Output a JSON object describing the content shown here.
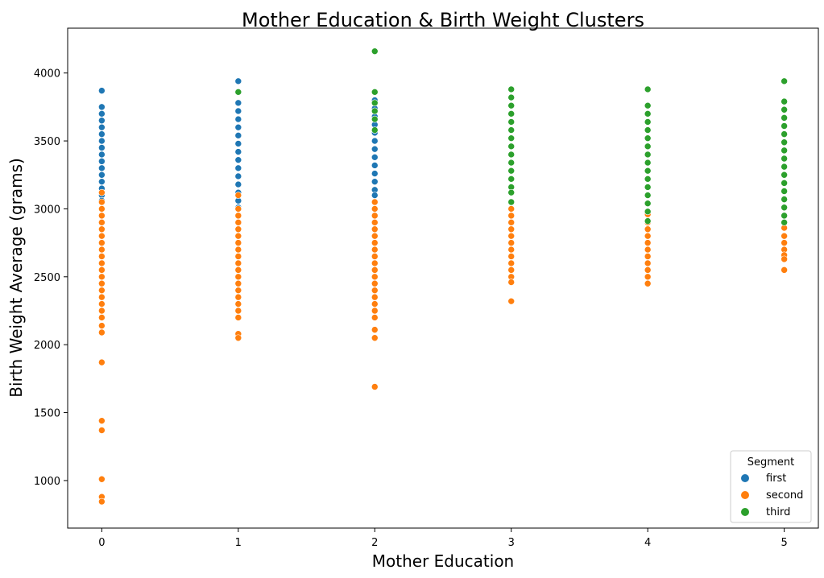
{
  "chart_data": {
    "type": "scatter",
    "title": "Mother Education & Birth Weight Clusters",
    "xlabel": "Mother Education",
    "ylabel": "Birth Weight Average (grams)",
    "xlim": [
      -0.25,
      5.25
    ],
    "ylim": [
      650,
      4330
    ],
    "xticks": [
      0,
      1,
      2,
      3,
      4,
      5
    ],
    "yticks": [
      1000,
      1500,
      2000,
      2500,
      3000,
      3500,
      4000
    ],
    "grid": false,
    "legend": {
      "title": "Segment",
      "placement": "bottom-right"
    },
    "series": [
      {
        "name": "first",
        "color": "#1f77b4",
        "points": [
          [
            0,
            3870
          ],
          [
            0,
            3750
          ],
          [
            0,
            3700
          ],
          [
            0,
            3650
          ],
          [
            0,
            3600
          ],
          [
            0,
            3550
          ],
          [
            0,
            3500
          ],
          [
            0,
            3450
          ],
          [
            0,
            3400
          ],
          [
            0,
            3350
          ],
          [
            0,
            3300
          ],
          [
            0,
            3250
          ],
          [
            0,
            3200
          ],
          [
            0,
            3150
          ],
          [
            0,
            3100
          ],
          [
            0,
            3060
          ],
          [
            1,
            3940
          ],
          [
            1,
            3780
          ],
          [
            1,
            3720
          ],
          [
            1,
            3660
          ],
          [
            1,
            3600
          ],
          [
            1,
            3540
          ],
          [
            1,
            3480
          ],
          [
            1,
            3420
          ],
          [
            1,
            3360
          ],
          [
            1,
            3300
          ],
          [
            1,
            3240
          ],
          [
            1,
            3180
          ],
          [
            1,
            3120
          ],
          [
            1,
            3060
          ],
          [
            1,
            3010
          ],
          [
            2,
            3800
          ],
          [
            2,
            3740
          ],
          [
            2,
            3680
          ],
          [
            2,
            3620
          ],
          [
            2,
            3560
          ],
          [
            2,
            3500
          ],
          [
            2,
            3440
          ],
          [
            2,
            3380
          ],
          [
            2,
            3320
          ],
          [
            2,
            3260
          ],
          [
            2,
            3200
          ],
          [
            2,
            3140
          ],
          [
            2,
            3100
          ]
        ]
      },
      {
        "name": "second",
        "color": "#ff7f0e",
        "points": [
          [
            0,
            3120
          ],
          [
            0,
            3050
          ],
          [
            0,
            3000
          ],
          [
            0,
            2950
          ],
          [
            0,
            2900
          ],
          [
            0,
            2850
          ],
          [
            0,
            2800
          ],
          [
            0,
            2750
          ],
          [
            0,
            2700
          ],
          [
            0,
            2650
          ],
          [
            0,
            2600
          ],
          [
            0,
            2550
          ],
          [
            0,
            2500
          ],
          [
            0,
            2450
          ],
          [
            0,
            2400
          ],
          [
            0,
            2350
          ],
          [
            0,
            2300
          ],
          [
            0,
            2250
          ],
          [
            0,
            2200
          ],
          [
            0,
            2140
          ],
          [
            0,
            2090
          ],
          [
            0,
            1870
          ],
          [
            0,
            1440
          ],
          [
            0,
            1370
          ],
          [
            0,
            1010
          ],
          [
            0,
            880
          ],
          [
            0,
            845
          ],
          [
            1,
            3100
          ],
          [
            1,
            3000
          ],
          [
            1,
            2950
          ],
          [
            1,
            2900
          ],
          [
            1,
            2850
          ],
          [
            1,
            2800
          ],
          [
            1,
            2750
          ],
          [
            1,
            2700
          ],
          [
            1,
            2650
          ],
          [
            1,
            2600
          ],
          [
            1,
            2550
          ],
          [
            1,
            2500
          ],
          [
            1,
            2450
          ],
          [
            1,
            2400
          ],
          [
            1,
            2350
          ],
          [
            1,
            2300
          ],
          [
            1,
            2250
          ],
          [
            1,
            2200
          ],
          [
            1,
            2080
          ],
          [
            1,
            2050
          ],
          [
            2,
            3050
          ],
          [
            2,
            3000
          ],
          [
            2,
            2950
          ],
          [
            2,
            2900
          ],
          [
            2,
            2850
          ],
          [
            2,
            2800
          ],
          [
            2,
            2750
          ],
          [
            2,
            2700
          ],
          [
            2,
            2650
          ],
          [
            2,
            2600
          ],
          [
            2,
            2550
          ],
          [
            2,
            2500
          ],
          [
            2,
            2450
          ],
          [
            2,
            2400
          ],
          [
            2,
            2350
          ],
          [
            2,
            2300
          ],
          [
            2,
            2250
          ],
          [
            2,
            2200
          ],
          [
            2,
            2110
          ],
          [
            2,
            2050
          ],
          [
            2,
            1690
          ],
          [
            3,
            3000
          ],
          [
            3,
            2950
          ],
          [
            3,
            2900
          ],
          [
            3,
            2850
          ],
          [
            3,
            2800
          ],
          [
            3,
            2750
          ],
          [
            3,
            2700
          ],
          [
            3,
            2650
          ],
          [
            3,
            2600
          ],
          [
            3,
            2550
          ],
          [
            3,
            2500
          ],
          [
            3,
            2460
          ],
          [
            3,
            2320
          ],
          [
            4,
            2960
          ],
          [
            4,
            2900
          ],
          [
            4,
            2850
          ],
          [
            4,
            2800
          ],
          [
            4,
            2750
          ],
          [
            4,
            2700
          ],
          [
            4,
            2650
          ],
          [
            4,
            2600
          ],
          [
            4,
            2550
          ],
          [
            4,
            2500
          ],
          [
            4,
            2450
          ],
          [
            5,
            2860
          ],
          [
            5,
            2800
          ],
          [
            5,
            2750
          ],
          [
            5,
            2700
          ],
          [
            5,
            2660
          ],
          [
            5,
            2630
          ],
          [
            5,
            2550
          ]
        ]
      },
      {
        "name": "third",
        "color": "#2ca02c",
        "points": [
          [
            1,
            3860
          ],
          [
            2,
            4160
          ],
          [
            2,
            3860
          ],
          [
            2,
            3780
          ],
          [
            2,
            3720
          ],
          [
            2,
            3660
          ],
          [
            2,
            3580
          ],
          [
            3,
            3880
          ],
          [
            3,
            3820
          ],
          [
            3,
            3760
          ],
          [
            3,
            3700
          ],
          [
            3,
            3640
          ],
          [
            3,
            3580
          ],
          [
            3,
            3520
          ],
          [
            3,
            3460
          ],
          [
            3,
            3400
          ],
          [
            3,
            3340
          ],
          [
            3,
            3280
          ],
          [
            3,
            3220
          ],
          [
            3,
            3160
          ],
          [
            3,
            3120
          ],
          [
            3,
            3050
          ],
          [
            4,
            3880
          ],
          [
            4,
            3760
          ],
          [
            4,
            3700
          ],
          [
            4,
            3640
          ],
          [
            4,
            3580
          ],
          [
            4,
            3520
          ],
          [
            4,
            3460
          ],
          [
            4,
            3400
          ],
          [
            4,
            3340
          ],
          [
            4,
            3280
          ],
          [
            4,
            3220
          ],
          [
            4,
            3160
          ],
          [
            4,
            3100
          ],
          [
            4,
            3040
          ],
          [
            4,
            2980
          ],
          [
            4,
            2910
          ],
          [
            5,
            3940
          ],
          [
            5,
            3790
          ],
          [
            5,
            3730
          ],
          [
            5,
            3670
          ],
          [
            5,
            3610
          ],
          [
            5,
            3550
          ],
          [
            5,
            3490
          ],
          [
            5,
            3430
          ],
          [
            5,
            3370
          ],
          [
            5,
            3310
          ],
          [
            5,
            3250
          ],
          [
            5,
            3190
          ],
          [
            5,
            3130
          ],
          [
            5,
            3070
          ],
          [
            5,
            3010
          ],
          [
            5,
            2950
          ],
          [
            5,
            2900
          ]
        ]
      }
    ]
  }
}
